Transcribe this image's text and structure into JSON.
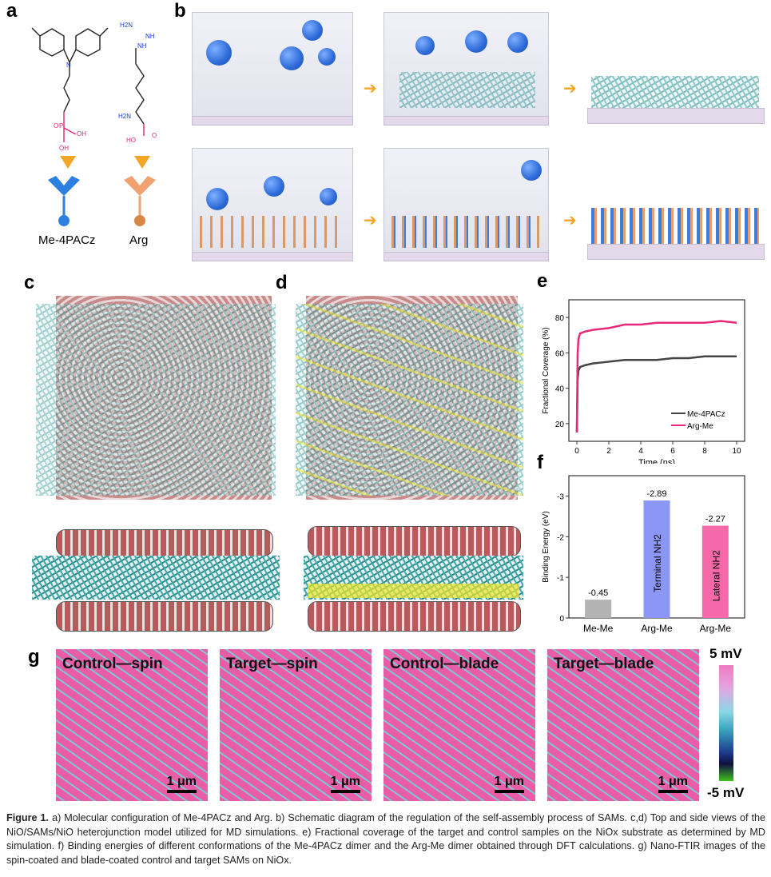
{
  "panels": {
    "a": "a",
    "b": "b",
    "c": "c",
    "d": "d",
    "e": "e",
    "f": "f",
    "g": "g"
  },
  "panel_a": {
    "mol1": "Me-4PACz",
    "mol2": "Arg",
    "atoms": [
      "N",
      "P",
      "O",
      "OH",
      "OH",
      "H2N",
      "NH",
      "NH",
      "H2N",
      "HO",
      "O"
    ]
  },
  "panel_g": {
    "images": [
      {
        "title": "Control—spin",
        "scale": "1 μm"
      },
      {
        "title": "Target—spin",
        "scale": "1 μm"
      },
      {
        "title": "Control—blade",
        "scale": "1 μm"
      },
      {
        "title": "Target—blade",
        "scale": "1 μm"
      }
    ],
    "colorbar_max": "5 mV",
    "colorbar_min": "-5 mV"
  },
  "chart_data": [
    {
      "type": "line",
      "xlabel": "Time (ns)",
      "ylabel": "Fractional Coverage (%)",
      "xlim": [
        -0.5,
        10.5
      ],
      "ylim": [
        10,
        90
      ],
      "xticks": [
        0,
        2,
        4,
        6,
        8,
        10
      ],
      "yticks": [
        20,
        40,
        60,
        80
      ],
      "legend": "bottom-right",
      "series": [
        {
          "name": "Me-4PACz",
          "color": "#444444",
          "x": [
            0,
            0.05,
            0.1,
            0.2,
            0.5,
            1,
            2,
            3,
            4,
            5,
            6,
            7,
            8,
            9,
            10
          ],
          "y": [
            15,
            45,
            50,
            52,
            53,
            54,
            55,
            56,
            56,
            56,
            57,
            57,
            58,
            58,
            58
          ]
        },
        {
          "name": "Arg-Me",
          "color": "#e8297a",
          "x": [
            0,
            0.05,
            0.1,
            0.2,
            0.5,
            1,
            2,
            3,
            4,
            5,
            6,
            7,
            8,
            9,
            10
          ],
          "y": [
            15,
            60,
            68,
            71,
            72,
            73,
            74,
            76,
            76,
            77,
            77,
            77,
            77,
            78,
            77
          ]
        }
      ]
    },
    {
      "type": "bar",
      "xlabel": "",
      "ylabel": "Binding Energy (eV)",
      "ylim": [
        0,
        -3.5
      ],
      "yticks": [
        0,
        -1,
        -2,
        -3
      ],
      "categories": [
        "Me-Me",
        "Arg-Me",
        "Arg-Me"
      ],
      "values": [
        -0.45,
        -2.89,
        -2.27
      ],
      "value_labels": [
        "-0.45",
        "-2.89",
        "-2.27"
      ],
      "bar_labels": [
        "",
        "Terminal NH2",
        "Lateral NH2"
      ],
      "colors": [
        "#b3b3b3",
        "#8c96f5",
        "#f569ab"
      ]
    }
  ],
  "caption": {
    "label": "Figure 1.",
    "text": " a) Molecular configuration of Me-4PACz and Arg. b) Schematic diagram of the regulation of the self-assembly process of SAMs. c,d) Top and side views of the NiO/SAMs/NiO heterojunction model utilized for MD simulations. e) Fractional coverage of the target and control samples on the NiOx substrate as determined by MD simulation. f) Binding energies of different conformations of the Me-4PACz dimer and the Arg-Me dimer obtained through DFT calculations. g) Nano-FTIR images of the spin-coated and blade-coated control and target SAMs on NiOx."
  }
}
